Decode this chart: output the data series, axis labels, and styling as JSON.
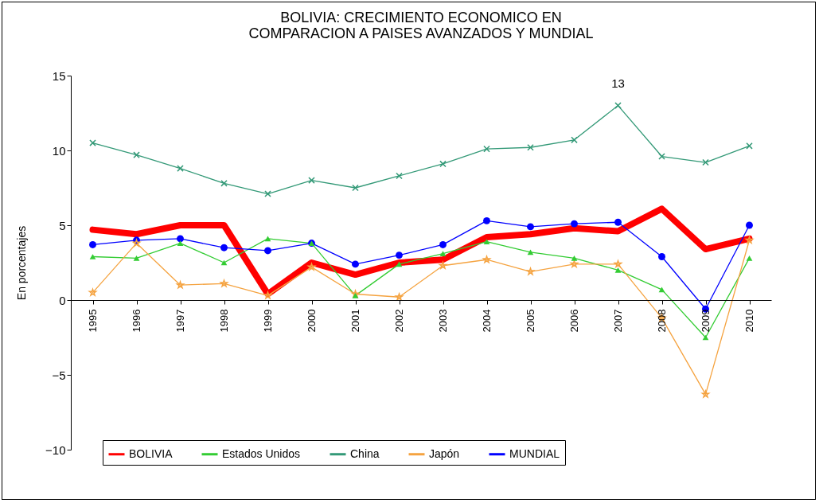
{
  "chart_data": {
    "type": "line",
    "title": "BOLIVIA: CRECIMIENTO ECONOMICO EN COMPARACION A PAISES AVANZADOS Y MUNDIAL",
    "ylabel": "En porcentajes",
    "categories": [
      "1995",
      "1996",
      "1997",
      "1998",
      "1999",
      "2000",
      "2001",
      "2002",
      "2003",
      "2004",
      "2005",
      "2006",
      "2007",
      "2008",
      "2009",
      "2010"
    ],
    "ylim": [
      -10,
      15
    ],
    "yticks": [
      -10,
      -5,
      0,
      5,
      10,
      15
    ],
    "grid": false,
    "legend": "bottom",
    "annotations": [
      {
        "text": "13",
        "x": "2007",
        "y": 13
      }
    ],
    "series": [
      {
        "name": "BOLIVIA",
        "color": "#ff0000",
        "marker": "none",
        "values": [
          4.7,
          4.4,
          5.0,
          5.0,
          0.4,
          2.5,
          1.7,
          2.5,
          2.7,
          4.2,
          4.4,
          4.8,
          4.6,
          6.1,
          3.4,
          4.1
        ]
      },
      {
        "name": "Estados Unidos",
        "color": "#33cc33",
        "marker": "triangle",
        "values": [
          2.9,
          2.8,
          3.8,
          2.5,
          4.1,
          3.8,
          0.3,
          2.4,
          3.1,
          3.9,
          3.2,
          2.8,
          2.0,
          0.7,
          -2.5,
          2.8
        ]
      },
      {
        "name": "China",
        "color": "#339977",
        "marker": "cross",
        "values": [
          10.5,
          9.7,
          8.8,
          7.8,
          7.1,
          8.0,
          7.5,
          8.3,
          9.1,
          10.1,
          10.2,
          10.7,
          13.0,
          9.6,
          9.2,
          10.3
        ]
      },
      {
        "name": "Japón",
        "color": "#f5a340",
        "marker": "star",
        "values": [
          0.5,
          3.8,
          1.0,
          1.1,
          0.3,
          2.2,
          0.4,
          0.2,
          2.3,
          2.7,
          1.9,
          2.4,
          2.4,
          -1.2,
          -6.3,
          4.0
        ]
      },
      {
        "name": "MUNDIAL",
        "color": "#0000ff",
        "marker": "circle",
        "values": [
          3.7,
          4.0,
          4.1,
          3.5,
          3.3,
          3.8,
          2.4,
          3.0,
          3.7,
          5.3,
          4.9,
          5.1,
          5.2,
          2.9,
          -0.6,
          5.0
        ]
      }
    ]
  }
}
